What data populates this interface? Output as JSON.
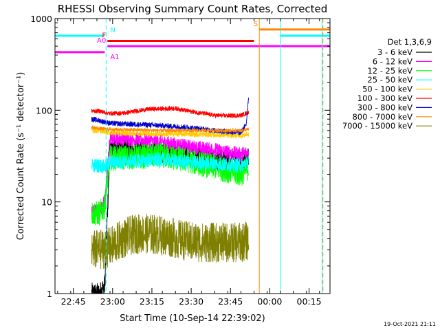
{
  "chart_data": {
    "type": "line",
    "title": "RHESSI Observing Summary Count Rates, Corrected",
    "xlabel": "Start Time (10-Sep-14 22:39:02)",
    "ylabel": "Corrected Count Rate (s⁻¹ detector⁻¹)",
    "y_scale": "log",
    "ylim": [
      1,
      1000
    ],
    "xlim_minutes": [
      -1,
      104
    ],
    "x_ticks": [
      {
        "label": "22:45",
        "minute": 6
      },
      {
        "label": "23:00",
        "minute": 21
      },
      {
        "label": "23:15",
        "minute": 36
      },
      {
        "label": "23:30",
        "minute": 51
      },
      {
        "label": "23:45",
        "minute": 66
      },
      {
        "label": "00:00",
        "minute": 81
      },
      {
        "label": "00:15",
        "minute": 96
      }
    ],
    "y_ticks": [
      {
        "label": "1",
        "value": 1
      },
      {
        "label": "10",
        "value": 10
      },
      {
        "label": "100",
        "value": 100
      },
      {
        "label": "1000",
        "value": 1000
      }
    ],
    "legend_title": "Det 1,3,6,9",
    "legend_position": "right",
    "series": [
      {
        "name": "3 - 6 keV",
        "color": "#000000",
        "x": [
          13,
          16,
          18,
          20,
          30,
          40,
          47,
          55,
          62,
          70,
          73
        ],
        "y": [
          1,
          1,
          1.2,
          40,
          38,
          35,
          33,
          30,
          28,
          27,
          30
        ],
        "noise": 0.12
      },
      {
        "name": "6 - 12 keV",
        "color": "#ff00ff",
        "x": [
          13,
          16,
          18,
          20,
          30,
          40,
          50,
          60,
          70,
          73
        ],
        "y": [
          8,
          8,
          10,
          50,
          48,
          45,
          40,
          37,
          33,
          35
        ],
        "noise": 0.08
      },
      {
        "name": "12 - 25 keV",
        "color": "#00ff00",
        "x": [
          13,
          16,
          18,
          20,
          30,
          40,
          50,
          60,
          70,
          73
        ],
        "y": [
          7.5,
          7.5,
          9,
          30,
          31,
          32,
          28,
          24,
          20,
          24
        ],
        "noise": 0.14
      },
      {
        "name": "25 - 50 keV",
        "color": "#00ffff",
        "x": [
          13,
          16,
          18,
          20,
          30,
          40,
          50,
          60,
          70,
          73
        ],
        "y": [
          25,
          25,
          24,
          27,
          28,
          29,
          27,
          26,
          25,
          27
        ],
        "noise": 0.08
      },
      {
        "name": "50 - 100 keV",
        "color": "#ffcc00",
        "x": [
          13,
          16,
          20,
          30,
          40,
          50,
          60,
          70,
          73
        ],
        "y": [
          60,
          60,
          57,
          56,
          55,
          55,
          54,
          53,
          55
        ],
        "noise": 0.03
      },
      {
        "name": "100 - 300 keV",
        "color": "#ff0000",
        "x": [
          13,
          16,
          20,
          25,
          30,
          35,
          45,
          50,
          55,
          60,
          65,
          70,
          73
        ],
        "y": [
          98,
          98,
          92,
          93,
          98,
          103,
          105,
          98,
          93,
          88,
          87,
          88,
          95
        ],
        "noise": 0.025
      },
      {
        "name": "300 - 800 keV",
        "color": "#0000cc",
        "x": [
          13,
          16,
          20,
          30,
          40,
          50,
          60,
          70,
          72,
          73
        ],
        "y": [
          80,
          77,
          72,
          70,
          68,
          65,
          60,
          57,
          70,
          150
        ],
        "noise": 0.03
      },
      {
        "name": "800 - 7000 keV",
        "color": "#ff8800",
        "x": [
          13,
          16,
          20,
          30,
          40,
          50,
          60,
          70,
          73
        ],
        "y": [
          65,
          63,
          62,
          61,
          60,
          60,
          60,
          60,
          62
        ],
        "noise": 0.02
      },
      {
        "name": "7000 - 15000 keV",
        "color": "#808000",
        "x": [
          13,
          16,
          20,
          25,
          30,
          35,
          40,
          45,
          50,
          55,
          60,
          65,
          70,
          73
        ],
        "y": [
          3,
          3,
          3.2,
          4,
          4.5,
          4.5,
          4.3,
          4,
          3.7,
          3.6,
          3.6,
          3.6,
          3.6,
          3.8
        ],
        "noise": 0.22
      }
    ],
    "flags": [
      {
        "label": "N",
        "color": "#00ffff",
        "x": [
          -1,
          18
        ],
        "y": 650
      },
      {
        "label": "N",
        "color": "#00ffff",
        "x": [
          85,
          104
        ],
        "y": 650
      },
      {
        "label": "F",
        "color": "#ff0000",
        "x": [
          19,
          75
        ],
        "y": 570
      },
      {
        "label": "S",
        "color": "#ff8800",
        "x": [
          77,
          104
        ],
        "y": 760
      },
      {
        "label": "A0",
        "color": "#ff00ff",
        "x": [
          19,
          104
        ],
        "y": 500
      },
      {
        "label": "A1",
        "color": "#ff00ff",
        "x": [
          -1,
          18
        ],
        "y": 430
      }
    ],
    "vertical_markers": [
      {
        "x": 18.5,
        "color": "#00ffff",
        "style": "dashed"
      },
      {
        "x": 77,
        "color": "#ff8800",
        "style": "solid"
      },
      {
        "x": 85,
        "color": "#00ffff",
        "style": "solid"
      },
      {
        "x": 101,
        "color": "#00ffff",
        "style": "solid"
      },
      {
        "x": 101.3,
        "color": "#ff8800",
        "style": "dashed"
      }
    ]
  },
  "footer": {
    "timestamp": "19-Oct-2021 21:11"
  }
}
